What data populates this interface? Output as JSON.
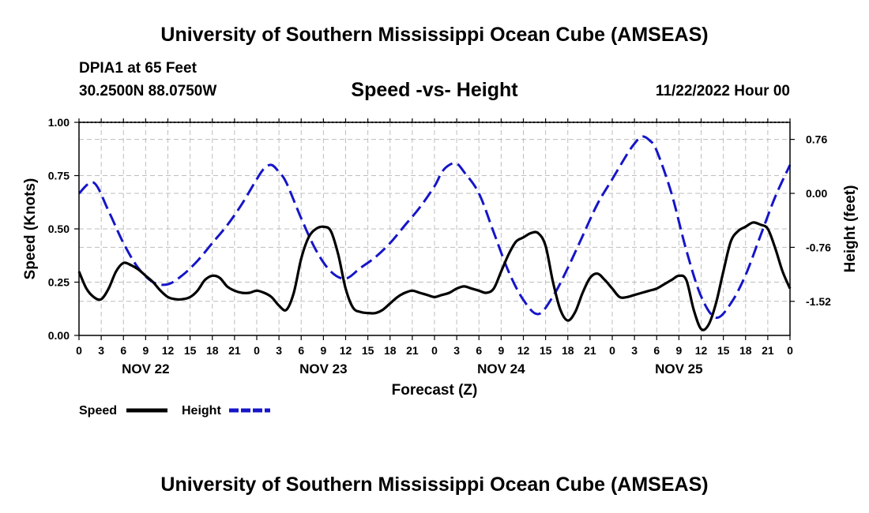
{
  "header": {
    "title": "University of Southern Mississippi Ocean Cube (AMSEAS)",
    "station": "DPIA1 at 65 Feet",
    "coords": "30.2500N  88.0750W",
    "subtitle": "Speed -vs- Height",
    "date": "11/22/2022 Hour 00"
  },
  "footer": {
    "title": "University of Southern Mississippi Ocean Cube (AMSEAS)"
  },
  "chart_data": {
    "type": "line",
    "xlabel": "Forecast (Z)",
    "ylabel_left": "Speed (Knots)",
    "ylabel_right": "Height (feet)",
    "x_range_hours": [
      0,
      96
    ],
    "x_tick_labels": [
      "0",
      "3",
      "6",
      "9",
      "12",
      "15",
      "18",
      "21",
      "0",
      "3",
      "6",
      "9",
      "12",
      "15",
      "18",
      "21",
      "0",
      "3",
      "6",
      "9",
      "12",
      "15",
      "18",
      "21",
      "0",
      "3",
      "6",
      "9",
      "12",
      "15",
      "18",
      "21",
      "0"
    ],
    "day_labels": [
      {
        "label": "NOV 22",
        "hour": 9
      },
      {
        "label": "NOV 23",
        "hour": 33
      },
      {
        "label": "NOV 24",
        "hour": 57
      },
      {
        "label": "NOV 25",
        "hour": 81
      }
    ],
    "ylim_left": [
      0,
      1
    ],
    "y_ticks_left": [
      "0.00",
      "0.25",
      "0.50",
      "0.75",
      "1.00"
    ],
    "ylim_right": [
      -2.0,
      1.0
    ],
    "y_ticks_right": [
      "-1.52",
      "-0.76",
      "0.00",
      "0.76"
    ],
    "legend": {
      "placement": "bottom-left",
      "entries": [
        "Speed",
        "Height"
      ]
    },
    "series": [
      {
        "name": "Speed",
        "color": "#000000",
        "x": [
          0,
          1,
          2,
          3,
          4,
          5,
          6,
          7,
          8,
          9,
          10,
          11,
          12,
          13,
          14,
          15,
          16,
          17,
          18,
          19,
          20,
          21,
          22,
          23,
          24,
          25,
          26,
          27,
          28,
          29,
          30,
          31,
          32,
          33,
          34,
          35,
          36,
          37,
          38,
          39,
          40,
          41,
          42,
          43,
          44,
          45,
          46,
          47,
          48,
          49,
          50,
          51,
          52,
          53,
          54,
          55,
          56,
          57,
          58,
          59,
          60,
          61,
          62,
          63,
          64,
          65,
          66,
          67,
          68,
          69,
          70,
          71,
          72,
          73,
          74,
          75,
          76,
          77,
          78,
          79,
          80,
          81,
          82,
          83,
          84,
          85,
          86,
          87,
          88,
          89,
          90,
          91,
          92,
          93,
          94,
          95,
          96
        ],
        "values": [
          0.3,
          0.22,
          0.18,
          0.17,
          0.22,
          0.3,
          0.34,
          0.33,
          0.31,
          0.28,
          0.25,
          0.21,
          0.18,
          0.17,
          0.17,
          0.18,
          0.21,
          0.26,
          0.28,
          0.27,
          0.23,
          0.21,
          0.2,
          0.2,
          0.21,
          0.2,
          0.18,
          0.14,
          0.12,
          0.2,
          0.36,
          0.46,
          0.5,
          0.51,
          0.49,
          0.38,
          0.22,
          0.13,
          0.11,
          0.105,
          0.105,
          0.12,
          0.15,
          0.18,
          0.2,
          0.21,
          0.2,
          0.19,
          0.18,
          0.19,
          0.2,
          0.22,
          0.23,
          0.22,
          0.21,
          0.2,
          0.22,
          0.3,
          0.38,
          0.44,
          0.46,
          0.48,
          0.48,
          0.42,
          0.25,
          0.12,
          0.07,
          0.11,
          0.2,
          0.27,
          0.29,
          0.26,
          0.22,
          0.18,
          0.18,
          0.19,
          0.2,
          0.21,
          0.22,
          0.24,
          0.26,
          0.28,
          0.26,
          0.12,
          0.03,
          0.05,
          0.15,
          0.3,
          0.44,
          0.49,
          0.51,
          0.53,
          0.52,
          0.5,
          0.41,
          0.3,
          0.22
        ],
        "note": "x in forecast hours from 11/22 00Z"
      },
      {
        "name": "Height",
        "color": "#1515c8",
        "x": [
          0,
          2,
          4,
          6,
          8,
          10,
          12,
          14,
          16,
          18,
          20,
          22,
          24,
          25,
          26,
          27,
          28,
          30,
          32,
          34,
          36,
          38,
          40,
          42,
          44,
          46,
          48,
          49,
          50,
          51,
          52,
          54,
          56,
          58,
          60,
          62,
          64,
          66,
          68,
          70,
          72,
          74,
          75,
          76,
          77,
          78,
          80,
          82,
          84,
          86,
          88,
          90,
          92,
          94,
          96
        ],
        "values": [
          0.0,
          0.15,
          -0.25,
          -0.7,
          -1.05,
          -1.25,
          -1.28,
          -1.15,
          -0.95,
          -0.7,
          -0.45,
          -0.15,
          0.2,
          0.35,
          0.4,
          0.3,
          0.15,
          -0.35,
          -0.8,
          -1.1,
          -1.2,
          -1.05,
          -0.9,
          -0.7,
          -0.45,
          -0.2,
          0.1,
          0.3,
          0.4,
          0.42,
          0.3,
          0.0,
          -0.55,
          -1.1,
          -1.5,
          -1.7,
          -1.45,
          -1.05,
          -0.6,
          -0.15,
          0.2,
          0.55,
          0.7,
          0.8,
          0.75,
          0.6,
          0.0,
          -0.8,
          -1.45,
          -1.75,
          -1.55,
          -1.15,
          -0.6,
          -0.05,
          0.4
        ],
        "note": "x in forecast hours from 11/22 00Z"
      }
    ]
  }
}
